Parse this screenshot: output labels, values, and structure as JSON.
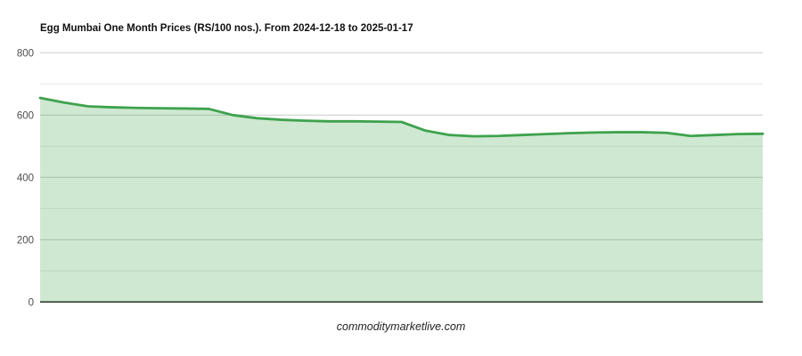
{
  "chart_data": {
    "type": "area",
    "title": "Egg Mumbai One Month Prices (RS/100 nos.). From 2024-12-18 to 2025-01-17",
    "x_start_date": "2024-12-18",
    "x_end_date": "2025-01-17",
    "x_labels_visible": false,
    "values": [
      655,
      640,
      628,
      625,
      623,
      622,
      621,
      620,
      600,
      590,
      585,
      582,
      580,
      580,
      579,
      578,
      550,
      536,
      532,
      533,
      536,
      539,
      542,
      544,
      545,
      545,
      543,
      533,
      536,
      539,
      540
    ],
    "ylim": [
      0,
      800
    ],
    "yticks_major": [
      0,
      200,
      400,
      600,
      800
    ],
    "yticks_minor": [
      100,
      300,
      500,
      700
    ],
    "grid": true,
    "legend": "none",
    "line_color": "#3ea24c",
    "fill_color": "rgba(62,162,76,0.25)",
    "major_grid_color": "#c9c9c9",
    "minor_grid_color": "#e7e7e7",
    "baseline_color": "#222222",
    "tick_label_color": "#4d4d4d",
    "footer": "commoditymarketlive.com"
  }
}
